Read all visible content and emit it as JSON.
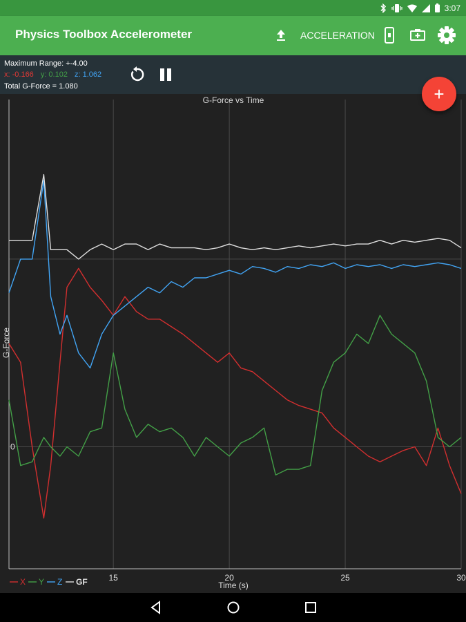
{
  "status_bar": {
    "time": "3:07",
    "icons": [
      "bluetooth-icon",
      "vibrate-icon",
      "wifi-icon",
      "cell-signal-icon",
      "battery-icon"
    ]
  },
  "app_bar": {
    "title": "Physics Toolbox Accelerometer",
    "mode_label": "ACCELERATION",
    "icons": [
      "upload-icon",
      "device-icon",
      "battery-icon",
      "gear-icon"
    ]
  },
  "info": {
    "max_range": "Maximum Range: +-4.00",
    "x": "x: -0.166",
    "y": "y: 0.102",
    "z": "z: 1.062",
    "total": "Total G-Force = 1.080"
  },
  "fab": {
    "label": "+"
  },
  "colors": {
    "x": "#d32f2f",
    "y": "#43a047",
    "z": "#42a5f5",
    "gf": "#e0e0e0",
    "accent": "#4caf50",
    "fab": "#f44336"
  },
  "chart_data": {
    "type": "line",
    "title": "G-Force vs Time",
    "xlabel": "Time (s)",
    "ylabel": "G-Force",
    "xlim": [
      10.5,
      30
    ],
    "ylim": [
      -0.65,
      1.85
    ],
    "x_ticks": [
      15,
      20,
      25,
      30
    ],
    "x_tick_labels": [
      "15",
      "20",
      "25",
      "30"
    ],
    "y_ticks": [
      0,
      1
    ],
    "y_tick_labels": [
      "0",
      ""
    ],
    "grid": true,
    "legend": {
      "placement": "bottom-left",
      "entries": [
        "X",
        "Y",
        "Z",
        "GF"
      ]
    },
    "x": [
      10.5,
      11.0,
      11.5,
      12.0,
      12.3,
      12.7,
      13.0,
      13.5,
      14.0,
      14.5,
      15.0,
      15.5,
      16.0,
      16.5,
      17.0,
      17.5,
      18.0,
      18.5,
      19.0,
      19.5,
      20.0,
      20.5,
      21.0,
      21.5,
      22.0,
      22.5,
      23.0,
      23.5,
      24.0,
      24.5,
      25.0,
      25.5,
      26.0,
      26.5,
      27.0,
      27.5,
      28.0,
      28.5,
      29.0,
      29.5,
      30.0
    ],
    "series": [
      {
        "name": "X",
        "values": [
          0.55,
          0.45,
          0.0,
          -0.38,
          -0.1,
          0.45,
          0.85,
          0.95,
          0.85,
          0.78,
          0.7,
          0.8,
          0.72,
          0.68,
          0.68,
          0.64,
          0.6,
          0.55,
          0.5,
          0.45,
          0.5,
          0.42,
          0.4,
          0.35,
          0.3,
          0.25,
          0.22,
          0.2,
          0.18,
          0.1,
          0.05,
          0.0,
          -0.05,
          -0.08,
          -0.05,
          -0.02,
          0.0,
          -0.1,
          0.1,
          -0.1,
          -0.25
        ]
      },
      {
        "name": "Y",
        "values": [
          0.25,
          -0.1,
          -0.08,
          0.05,
          0.0,
          -0.05,
          0.0,
          -0.05,
          0.08,
          0.1,
          0.5,
          0.2,
          0.05,
          0.12,
          0.08,
          0.1,
          0.05,
          -0.05,
          0.05,
          0.0,
          -0.05,
          0.02,
          0.05,
          0.1,
          -0.15,
          -0.12,
          -0.12,
          -0.1,
          0.3,
          0.45,
          0.5,
          0.6,
          0.55,
          0.7,
          0.6,
          0.55,
          0.5,
          0.35,
          0.05,
          0.0,
          0.05
        ]
      },
      {
        "name": "Z",
        "values": [
          0.82,
          1.0,
          1.0,
          1.42,
          0.8,
          0.6,
          0.7,
          0.5,
          0.42,
          0.6,
          0.7,
          0.75,
          0.8,
          0.85,
          0.82,
          0.88,
          0.85,
          0.9,
          0.9,
          0.92,
          0.94,
          0.92,
          0.96,
          0.95,
          0.93,
          0.96,
          0.95,
          0.97,
          0.96,
          0.98,
          0.95,
          0.97,
          0.96,
          0.97,
          0.95,
          0.97,
          0.96,
          0.97,
          0.98,
          0.97,
          0.95
        ]
      },
      {
        "name": "GF",
        "values": [
          1.1,
          1.1,
          1.1,
          1.45,
          1.05,
          1.05,
          1.05,
          1.0,
          1.05,
          1.08,
          1.05,
          1.08,
          1.08,
          1.05,
          1.08,
          1.06,
          1.06,
          1.06,
          1.05,
          1.06,
          1.08,
          1.06,
          1.05,
          1.06,
          1.05,
          1.06,
          1.07,
          1.06,
          1.07,
          1.08,
          1.07,
          1.08,
          1.08,
          1.1,
          1.08,
          1.1,
          1.09,
          1.1,
          1.11,
          1.1,
          1.06
        ]
      }
    ]
  },
  "nav_bar": {
    "icons": [
      "back-icon",
      "home-icon",
      "recents-icon"
    ]
  }
}
